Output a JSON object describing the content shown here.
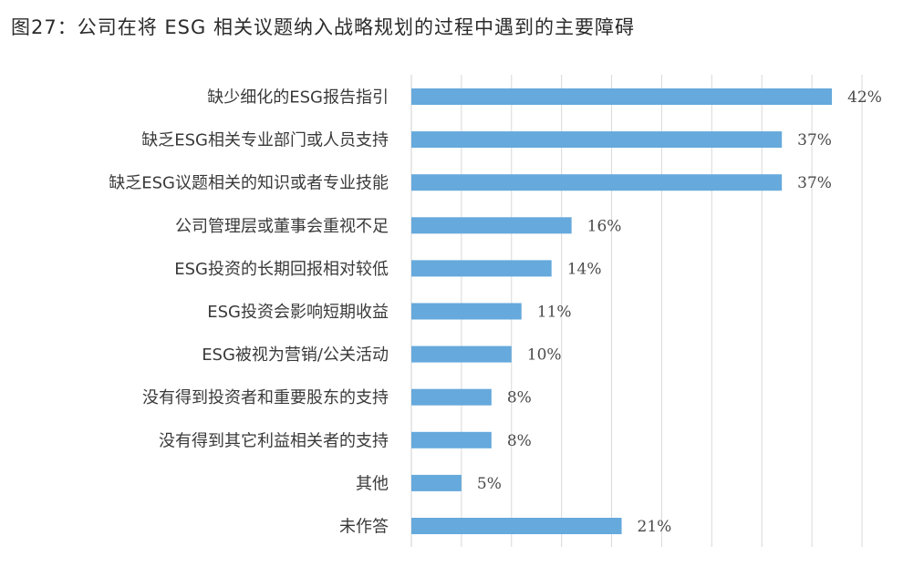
{
  "figure": {
    "title": "图27：公司在将 ESG 相关议题纳入战略规划的过程中遇到的主要障碍"
  },
  "chart_data": {
    "type": "bar",
    "orientation": "horizontal",
    "title": "图27：公司在将 ESG 相关议题纳入战略规划的过程中遇到的主要障碍",
    "categories": [
      "缺少细化的ESG报告指引",
      "缺乏ESG相关专业部门或人员支持",
      "缺乏ESG议题相关的知识或者专业技能",
      "公司管理层或董事会重视不足",
      "ESG投资的长期回报相对较低",
      "ESG投资会影响短期收益",
      "ESG被视为营销/公关活动",
      "没有得到投资者和重要股东的支持",
      "没有得到其它利益相关者的支持",
      "其他",
      "未作答"
    ],
    "values": [
      42,
      37,
      37,
      16,
      14,
      11,
      10,
      8,
      8,
      5,
      21
    ],
    "value_labels": [
      "42%",
      "37%",
      "37%",
      "16%",
      "14%",
      "11%",
      "10%",
      "8%",
      "8%",
      "5%",
      "21%"
    ],
    "unit": "%",
    "xlim": [
      0,
      45
    ],
    "grid": true,
    "legend": "none",
    "bar_color": "#66a9dc",
    "grid_color": "#d9d9d9"
  }
}
